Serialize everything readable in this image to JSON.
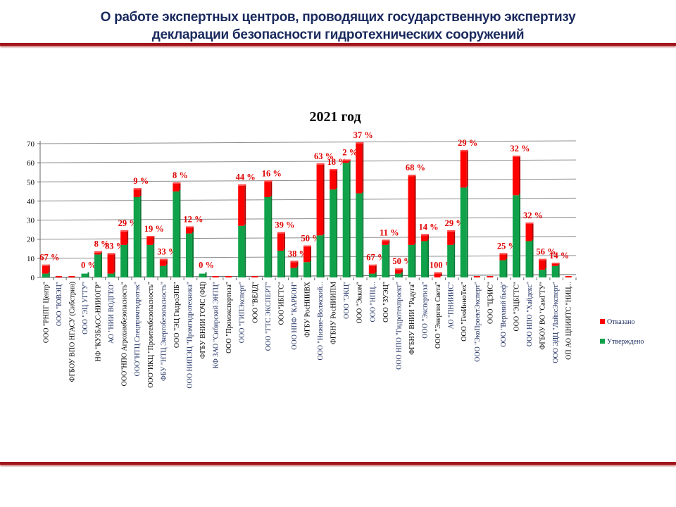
{
  "header": {
    "title_line1": "О работе экспертных центров, проводящих государственную экспертизу",
    "title_line2": "декларации безопасности гидротехнических сооружений"
  },
  "colors": {
    "rejected": "#ff0000",
    "approved": "#10a24a",
    "title": "#1a2a5e",
    "rule": "#a0161c",
    "pct_label": "#e00000"
  },
  "chart_data": {
    "type": "bar",
    "stacked": true,
    "title": "2021 год",
    "xlabel": "",
    "ylabel": "",
    "ylim": [
      0,
      70
    ],
    "yticks": [
      0,
      10,
      20,
      30,
      40,
      50,
      60,
      70
    ],
    "grid": true,
    "legend_position": "right",
    "categories": [
      "ООО \"РНПГ Центр\"",
      "ООО \"ЮВЭЦ\"",
      "ФГБОУ ВПО НГАСУ (Сибстрин)",
      "ООО \"ЭЦ УГТУ\"",
      "НФ \"КУЗБАСС-НИИОГР\"",
      "АО \"НИИ ВОДГЕО\"",
      "ООО\"НПО Агрохимбезопасность\"",
      "ООО\"НТЦ Спецпромгидротэк\"",
      "ООО\"ИКЦ \"Промтехбезопасность\"",
      "ФБУ \"НТЦ Энергобезопасность\"",
      "ООО \"ЭЦ ГидроЭПБ\"",
      "ООО НИПЭЦ \"Промгидротехника\"",
      "ФГБУ ВНИИ ГОЧС (ФЦ)",
      "КФ ЗАО \"Сибирский ЭНТЦ\"",
      "ООО \"Промэкспертиза\"",
      "ООО \"ГИПЭксперт\"",
      "ООО \"ВЕЛД\"",
      "ООО \"ГТС ЭКСПЕРТ\"",
      "ООО\"ИБГТС\"",
      "ООО НПФ \"КАРБОН\"",
      "ФГБУ РосНИИВХ",
      "ООО \"Нижне-Волжский...",
      "ФГБНУ РосНИИПМ",
      "ООО \"ЭКЦ\"",
      "ООО \"Экком\"",
      "ООО \"НПЦ...",
      "ООО \"ЗУЭЦ\"",
      "ООО НПО \"Гидротехпроект\"",
      "ФГБНУ ВНИИ \"Радуга\"",
      "ООО \"Экспертиза\"",
      "ООО \"Энергия Света\"",
      "АО \"ПНИИИС\"",
      "ООО \"ГеоИнноТех\"",
      "ООО \"ЭкоПроектЭксперт\"",
      "ООО \"ЦЭИС\"",
      "ООО \"Верхний бьеф\"",
      "ООО \"ЭЦБГТС\"",
      "ООО НПО \"Хайдекс\"",
      "ФГБОУ ВО \"СамГТУ\"",
      "ООО ЭДЦ \"ЛайнсЭксперт\"",
      "ОП АО ЦНИИТС \"НИЦ..."
    ],
    "series": [
      {
        "name": "Утверждено",
        "values": [
          2,
          0,
          0,
          2,
          12,
          2,
          17,
          42,
          17,
          6,
          45,
          23,
          2,
          0,
          0,
          27,
          0,
          42,
          14,
          5,
          8,
          22,
          46,
          60,
          44,
          2,
          17,
          2,
          17,
          19,
          0,
          17,
          47,
          0,
          0,
          9,
          43,
          19,
          4,
          6,
          0
        ]
      },
      {
        "name": "Отказано",
        "values": [
          4,
          0,
          0,
          0,
          1,
          10,
          7,
          4,
          4,
          3,
          4,
          3,
          0,
          0,
          0,
          21,
          0,
          8,
          9,
          3,
          8,
          37,
          10,
          1,
          26,
          4,
          2,
          2,
          36,
          3,
          2,
          7,
          19,
          0,
          0,
          3,
          20,
          9,
          5,
          1,
          0
        ]
      }
    ],
    "data_labels": [
      "67 %",
      "",
      "",
      "0 %",
      "8 %",
      "83 %",
      "29 %",
      "9 %",
      "19 %",
      "33 %",
      "8 %",
      "12 %",
      "0 %",
      "",
      "",
      "44 %",
      "",
      "16 %",
      "39 %",
      "38 %",
      "50 %",
      "63 %",
      "18 %",
      "2 %",
      "37 %",
      "67 %",
      "11 %",
      "50 %",
      "68 %",
      "14 %",
      "100 %",
      "29 %",
      "29 %",
      "",
      "",
      "25 %",
      "32 %",
      "32 %",
      "56 %",
      "14 %",
      ""
    ],
    "legend": [
      "Отказано",
      "Утверждено"
    ]
  }
}
